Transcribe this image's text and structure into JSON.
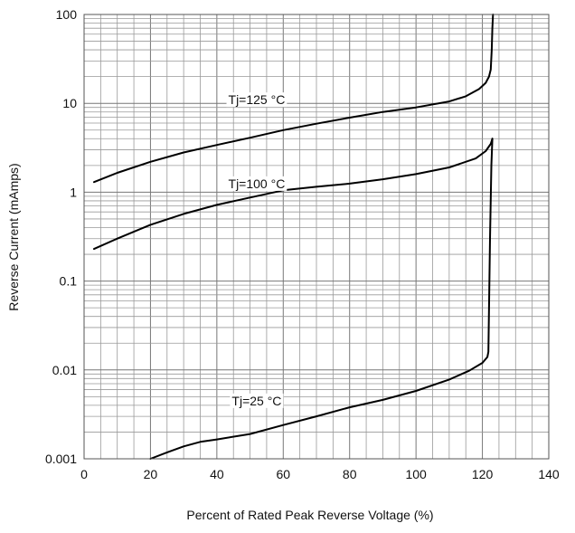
{
  "chart_data": {
    "type": "line",
    "xlabel": "Percent of Rated Peak Reverse Voltage (%)",
    "ylabel": "Reverse Current (mAmps)",
    "xlim": [
      0,
      140
    ],
    "ylim": [
      0.001,
      100
    ],
    "yscale": "log",
    "grid": true,
    "x_ticks": [
      0,
      20,
      40,
      60,
      80,
      100,
      120,
      140
    ],
    "y_ticks": [
      {
        "value": 0.001,
        "label": "0.001"
      },
      {
        "value": 0.01,
        "label": "0.01"
      },
      {
        "value": 0.1,
        "label": "0.1"
      },
      {
        "value": 1,
        "label": "1"
      },
      {
        "value": 10,
        "label": "10"
      },
      {
        "value": 100,
        "label": "100"
      }
    ],
    "series": [
      {
        "name": "Tj=125 °C",
        "label_at": [
          52,
          11
        ],
        "points": [
          [
            3,
            1.3
          ],
          [
            10,
            1.65
          ],
          [
            20,
            2.2
          ],
          [
            30,
            2.8
          ],
          [
            40,
            3.4
          ],
          [
            50,
            4.1
          ],
          [
            60,
            5.0
          ],
          [
            70,
            5.9
          ],
          [
            80,
            6.9
          ],
          [
            90,
            8.0
          ],
          [
            100,
            9.0
          ],
          [
            110,
            10.5
          ],
          [
            115,
            12
          ],
          [
            119,
            14.5
          ],
          [
            121,
            17
          ],
          [
            122,
            20
          ],
          [
            122.5,
            24
          ],
          [
            122.8,
            40
          ],
          [
            123,
            70
          ],
          [
            123.2,
            100
          ]
        ]
      },
      {
        "name": "Tj=100 °C",
        "label_at": [
          52,
          1.25
        ],
        "points": [
          [
            3,
            0.23
          ],
          [
            10,
            0.3
          ],
          [
            20,
            0.43
          ],
          [
            30,
            0.57
          ],
          [
            40,
            0.72
          ],
          [
            50,
            0.87
          ],
          [
            60,
            1.05
          ],
          [
            70,
            1.15
          ],
          [
            80,
            1.25
          ],
          [
            90,
            1.4
          ],
          [
            100,
            1.6
          ],
          [
            110,
            1.9
          ],
          [
            118,
            2.4
          ],
          [
            121,
            2.9
          ],
          [
            122.5,
            3.5
          ],
          [
            123,
            4.0
          ]
        ]
      },
      {
        "name": "Tj=25 °C",
        "label_at": [
          52,
          0.0045
        ],
        "points": [
          [
            20,
            0.001
          ],
          [
            25,
            0.00118
          ],
          [
            30,
            0.00138
          ],
          [
            35,
            0.00155
          ],
          [
            40,
            0.00165
          ],
          [
            50,
            0.0019
          ],
          [
            60,
            0.0024
          ],
          [
            70,
            0.003
          ],
          [
            80,
            0.0038
          ],
          [
            90,
            0.0046
          ],
          [
            100,
            0.0058
          ],
          [
            110,
            0.0078
          ],
          [
            116,
            0.0098
          ],
          [
            120,
            0.012
          ],
          [
            121.5,
            0.014
          ],
          [
            121.8,
            0.016
          ],
          [
            122,
            0.05
          ],
          [
            122.3,
            0.3
          ],
          [
            122.7,
            2
          ],
          [
            123,
            4
          ]
        ]
      }
    ]
  }
}
